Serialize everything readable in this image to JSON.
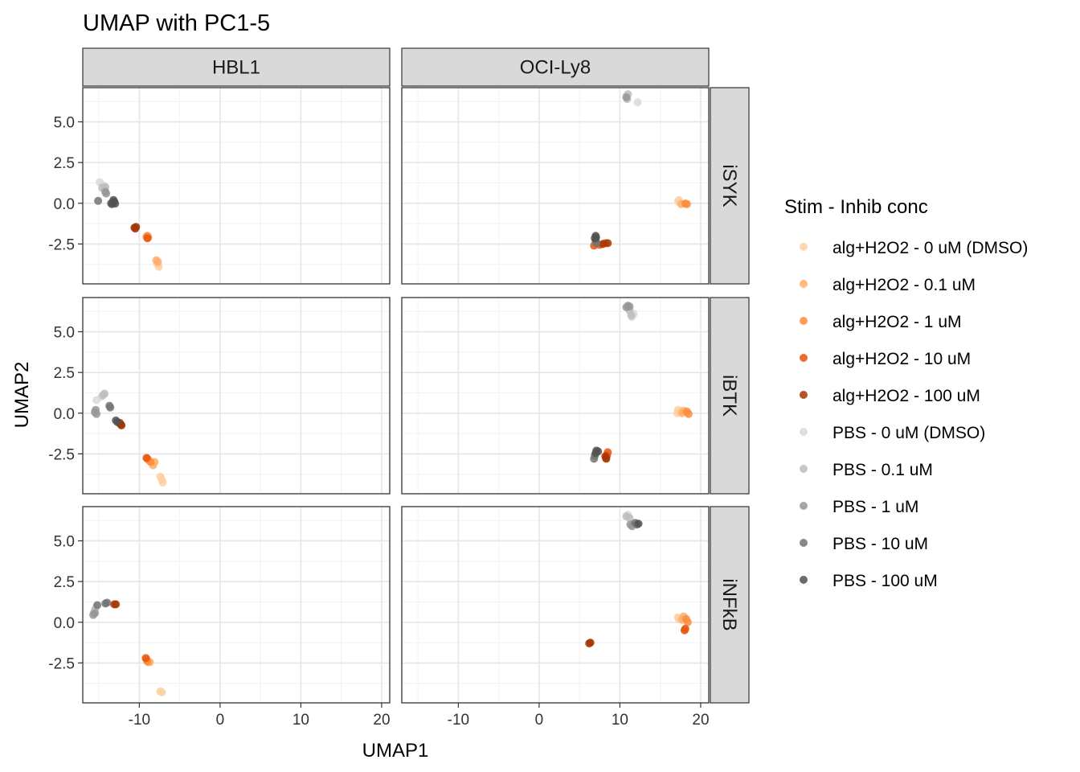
{
  "chart_data": {
    "type": "scatter",
    "title": "UMAP with PC1-5",
    "xlabel": "UMAP1",
    "ylabel": "UMAP2",
    "xlim": [
      -17,
      21
    ],
    "ylim": [
      -4.95,
      7.1
    ],
    "x_ticks": [
      -10,
      0,
      10,
      20
    ],
    "x_tick_labels": [
      "-10",
      "0",
      "10",
      "20"
    ],
    "y_ticks": [
      -2.5,
      0.0,
      2.5,
      5.0
    ],
    "y_tick_labels": [
      "-2.5",
      "0.0",
      "2.5",
      "5.0"
    ],
    "grid": true,
    "facet_columns": [
      "HBL1",
      "OCI-Ly8"
    ],
    "facet_rows": [
      "iSYK",
      "iBTK",
      "iNFkB"
    ],
    "legend": {
      "title": "Stim - Inhib conc",
      "position": "right",
      "entries": [
        {
          "label": "alg+H2O2 - 0 uM (DMSO)",
          "color": "#fdd0a2"
        },
        {
          "label": "alg+H2O2 - 0.1 uM",
          "color": "#fdae6b"
        },
        {
          "label": "alg+H2O2 - 1 uM",
          "color": "#fd8d3c"
        },
        {
          "label": "alg+H2O2 - 10 uM",
          "color": "#e6550d"
        },
        {
          "label": "alg+H2O2 - 100 uM",
          "color": "#a63603"
        },
        {
          "label": "PBS - 0 uM (DMSO)",
          "color": "#d9d9d9"
        },
        {
          "label": "PBS - 0.1 uM",
          "color": "#bdbdbd"
        },
        {
          "label": "PBS - 1 uM",
          "color": "#969696"
        },
        {
          "label": "PBS - 10 uM",
          "color": "#737373"
        },
        {
          "label": "PBS - 100 uM",
          "color": "#525252"
        }
      ]
    },
    "panels": [
      {
        "column": "HBL1",
        "row": "iSYK",
        "points": [
          [
            -7.8,
            -3.7,
            0
          ],
          [
            -7.6,
            -3.9,
            0
          ],
          [
            -7.9,
            -3.5,
            1
          ],
          [
            -7.7,
            -3.6,
            1
          ],
          [
            -9.0,
            -2.0,
            2
          ],
          [
            -8.9,
            -2.1,
            2
          ],
          [
            -9.1,
            -2.05,
            2
          ],
          [
            -9.0,
            -2.15,
            3
          ],
          [
            -10.6,
            -1.5,
            4
          ],
          [
            -10.4,
            -1.45,
            4
          ],
          [
            -10.5,
            -1.55,
            4
          ],
          [
            -14.9,
            1.3,
            5
          ],
          [
            -14.5,
            1.1,
            5
          ],
          [
            -14.2,
            1.0,
            6
          ],
          [
            -14.3,
            0.9,
            6
          ],
          [
            -14.6,
            0.95,
            6
          ],
          [
            -14.1,
            0.6,
            7
          ],
          [
            -14.2,
            0.7,
            7
          ],
          [
            -15.1,
            0.15,
            8
          ],
          [
            -13.5,
            0.0,
            8
          ],
          [
            -13.2,
            0.2,
            9
          ],
          [
            -13.3,
            0.05,
            9
          ],
          [
            -13.1,
            0.1,
            9
          ],
          [
            -13.4,
            -0.05,
            9
          ],
          [
            -13.0,
            -0.02,
            9
          ]
        ]
      },
      {
        "column": "OCI-Ly8",
        "row": "iSYK",
        "points": [
          [
            17.3,
            0.2,
            0
          ],
          [
            17.2,
            0.1,
            0
          ],
          [
            17.6,
            -0.05,
            1
          ],
          [
            18.1,
            -0.02,
            2
          ],
          [
            18.3,
            -0.05,
            2
          ],
          [
            6.8,
            -2.6,
            3
          ],
          [
            7.5,
            -2.55,
            3
          ],
          [
            8.2,
            -2.45,
            3
          ],
          [
            7.9,
            -2.5,
            4
          ],
          [
            8.5,
            -2.45,
            4
          ],
          [
            10.8,
            6.6,
            5
          ],
          [
            12.2,
            6.2,
            5
          ],
          [
            10.9,
            6.4,
            6
          ],
          [
            11.0,
            6.7,
            6
          ],
          [
            10.8,
            6.5,
            7
          ],
          [
            7.0,
            -2.3,
            8
          ],
          [
            7.1,
            -2.45,
            8
          ],
          [
            7.0,
            -2.0,
            9
          ],
          [
            6.9,
            -2.15,
            9
          ],
          [
            7.05,
            -2.1,
            9
          ]
        ]
      },
      {
        "column": "HBL1",
        "row": "iBTK",
        "points": [
          [
            -7.4,
            -3.9,
            0
          ],
          [
            -7.1,
            -4.25,
            0
          ],
          [
            -7.25,
            -4.05,
            0
          ],
          [
            -8.3,
            -3.2,
            1
          ],
          [
            -8.1,
            -3.0,
            1
          ],
          [
            -9.0,
            -2.8,
            2
          ],
          [
            -8.8,
            -2.9,
            2
          ],
          [
            -8.6,
            -3.0,
            2
          ],
          [
            -9.1,
            -2.75,
            3
          ],
          [
            -12.4,
            -0.6,
            4
          ],
          [
            -12.2,
            -0.75,
            4
          ],
          [
            -12.3,
            -0.7,
            4
          ],
          [
            -15.3,
            0.8,
            5
          ],
          [
            -14.7,
            1.0,
            5
          ],
          [
            -14.3,
            1.2,
            6
          ],
          [
            -14.5,
            1.1,
            6
          ],
          [
            -15.4,
            0.2,
            7
          ],
          [
            -15.5,
            0.05,
            7
          ],
          [
            -15.3,
            -0.05,
            7
          ],
          [
            -13.7,
            0.45,
            8
          ],
          [
            -13.6,
            0.35,
            8
          ],
          [
            -12.9,
            -0.45,
            9
          ],
          [
            -12.7,
            -0.55,
            9
          ]
        ]
      },
      {
        "column": "OCI-Ly8",
        "row": "iBTK",
        "points": [
          [
            17.2,
            0.2,
            0
          ],
          [
            17.1,
            0.0,
            0
          ],
          [
            17.4,
            0.1,
            0
          ],
          [
            17.7,
            0.0,
            1
          ],
          [
            17.9,
            0.15,
            1
          ],
          [
            18.3,
            0.1,
            2
          ],
          [
            18.5,
            -0.05,
            2
          ],
          [
            8.5,
            -2.4,
            3
          ],
          [
            8.4,
            -2.6,
            3
          ],
          [
            8.3,
            -2.75,
            3
          ],
          [
            8.2,
            -2.65,
            4
          ],
          [
            8.3,
            -2.8,
            4
          ],
          [
            11.5,
            5.9,
            5
          ],
          [
            11.7,
            6.1,
            5
          ],
          [
            11.2,
            6.3,
            6
          ],
          [
            11.4,
            6.0,
            6
          ],
          [
            10.8,
            6.5,
            7
          ],
          [
            11.0,
            6.6,
            7
          ],
          [
            11.2,
            6.55,
            7
          ],
          [
            6.9,
            -2.6,
            8
          ],
          [
            6.8,
            -2.8,
            8
          ],
          [
            7.1,
            -2.3,
            9
          ],
          [
            7.0,
            -2.45,
            9
          ],
          [
            7.3,
            -2.35,
            9
          ]
        ]
      },
      {
        "column": "HBL1",
        "row": "iNFkB",
        "points": [
          [
            -7.4,
            -4.25,
            0
          ],
          [
            -7.2,
            -4.3,
            0
          ],
          [
            -8.9,
            -2.45,
            1
          ],
          [
            -8.7,
            -2.45,
            1
          ],
          [
            -9.1,
            -2.3,
            2
          ],
          [
            -9.0,
            -2.4,
            2
          ],
          [
            -9.2,
            -2.2,
            3
          ],
          [
            -13.1,
            1.1,
            4
          ],
          [
            -12.9,
            1.1,
            4
          ],
          [
            -15.4,
            0.9,
            5
          ],
          [
            -15.6,
            0.6,
            6
          ],
          [
            -15.5,
            0.75,
            6
          ],
          [
            -15.7,
            0.45,
            7
          ],
          [
            -15.5,
            0.55,
            7
          ],
          [
            -14.2,
            1.15,
            8
          ],
          [
            -15.2,
            1.05,
            8
          ],
          [
            -14.0,
            1.2,
            8
          ]
        ]
      },
      {
        "column": "OCI-Ly8",
        "row": "iNFkB",
        "points": [
          [
            17.2,
            0.3,
            0
          ],
          [
            17.3,
            0.2,
            0
          ],
          [
            17.7,
            0.15,
            1
          ],
          [
            17.9,
            0.35,
            1
          ],
          [
            18.2,
            0.2,
            2
          ],
          [
            18.4,
            0.0,
            2
          ],
          [
            18.1,
            -0.4,
            3
          ],
          [
            18.0,
            -0.5,
            3
          ],
          [
            6.2,
            -1.3,
            4
          ],
          [
            6.35,
            -1.25,
            4
          ],
          [
            11.0,
            6.6,
            5
          ],
          [
            11.2,
            6.4,
            6
          ],
          [
            10.8,
            6.5,
            6
          ],
          [
            11.5,
            5.9,
            7
          ],
          [
            11.3,
            6.0,
            7
          ],
          [
            11.9,
            6.1,
            8
          ],
          [
            12.1,
            6.0,
            8
          ],
          [
            12.3,
            6.05,
            9
          ]
        ]
      }
    ]
  }
}
